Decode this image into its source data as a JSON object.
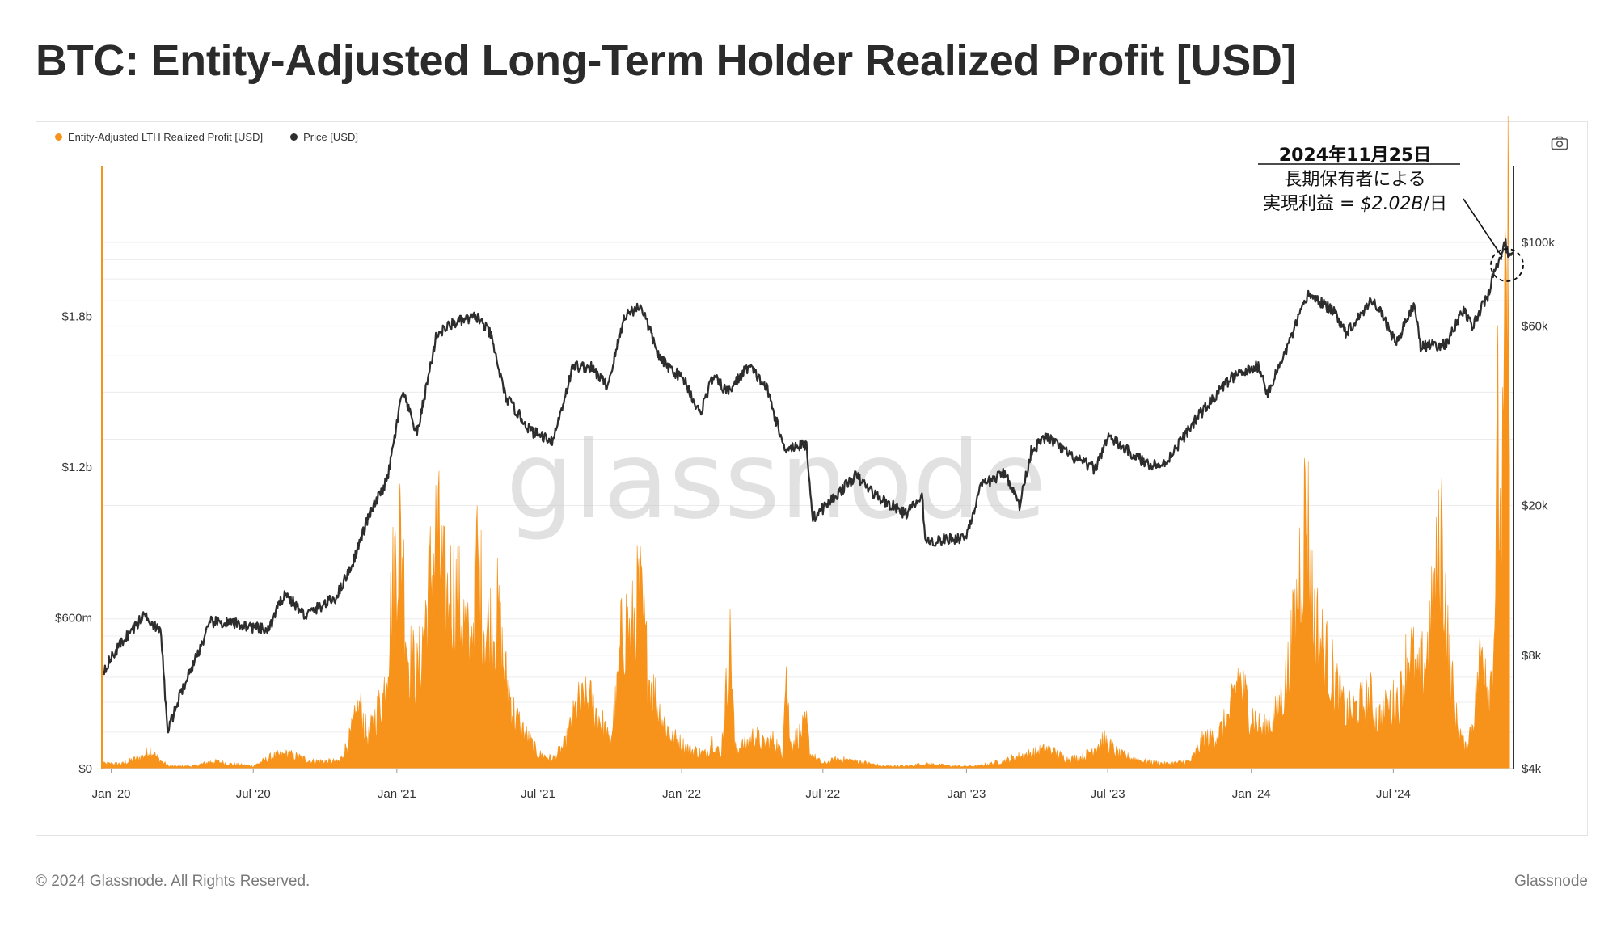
{
  "page": {
    "title": "BTC: Entity-Adjusted Long-Term Holder Realized Profit [USD]",
    "footer_left": "© 2024 Glassnode. All Rights Reserved.",
    "footer_right": "Glassnode",
    "watermark": "glassnode"
  },
  "colors": {
    "profit": "#f7931a",
    "price": "#2d2d2d",
    "grid": "#ececec",
    "axis_text": "#333333"
  },
  "icons": {
    "camera": "camera-icon"
  },
  "chart_data": {
    "type": "area",
    "legend": [
      "Entity-Adjusted LTH Realized Profit [USD]",
      "Price [USD]"
    ],
    "x_ticks": [
      "Jan '20",
      "Jul '20",
      "Jan '21",
      "Jul '21",
      "Jan '22",
      "Jul '22",
      "Jan '23",
      "Jul '23",
      "Jan '24",
      "Jul '24"
    ],
    "x_range": [
      "2019-12-20",
      "2024-12-02"
    ],
    "y_left": {
      "ticks": [
        "$0",
        "$600m",
        "$1.2b",
        "$1.8b"
      ],
      "tick_values": [
        0,
        0.6,
        1.2,
        1.8
      ],
      "unit": "billion USD",
      "range": [
        0,
        2.4
      ]
    },
    "y_right": {
      "scale": "log",
      "ticks": [
        "$4k",
        "$8k",
        "$20k",
        "$60k",
        "$100k"
      ],
      "tick_values": [
        4000,
        8000,
        20000,
        60000,
        100000
      ],
      "range": [
        4000,
        160000
      ]
    },
    "series": [
      {
        "name": "Entity-Adjusted LTH Realized Profit [USD]",
        "unit": "billion USD",
        "points": [
          [
            "2019-12-20",
            0.02
          ],
          [
            "2020-01-15",
            0.02
          ],
          [
            "2020-02-10",
            0.05
          ],
          [
            "2020-02-20",
            0.08
          ],
          [
            "2020-03-01",
            0.04
          ],
          [
            "2020-03-15",
            0.01
          ],
          [
            "2020-04-15",
            0.01
          ],
          [
            "2020-05-10",
            0.03
          ],
          [
            "2020-06-01",
            0.02
          ],
          [
            "2020-07-01",
            0.01
          ],
          [
            "2020-07-25",
            0.05
          ],
          [
            "2020-08-15",
            0.06
          ],
          [
            "2020-09-15",
            0.03
          ],
          [
            "2020-10-20",
            0.03
          ],
          [
            "2020-11-01",
            0.12
          ],
          [
            "2020-11-15",
            0.26
          ],
          [
            "2020-11-25",
            0.12
          ],
          [
            "2020-12-05",
            0.22
          ],
          [
            "2020-12-15",
            0.3
          ],
          [
            "2020-12-27",
            0.75
          ],
          [
            "2021-01-02",
            0.98
          ],
          [
            "2021-01-08",
            0.9
          ],
          [
            "2021-01-15",
            0.48
          ],
          [
            "2021-01-28",
            0.38
          ],
          [
            "2021-02-10",
            0.7
          ],
          [
            "2021-02-21",
            0.97
          ],
          [
            "2021-03-05",
            0.68
          ],
          [
            "2021-03-15",
            0.76
          ],
          [
            "2021-03-28",
            0.6
          ],
          [
            "2021-04-05",
            0.46
          ],
          [
            "2021-04-14",
            0.87
          ],
          [
            "2021-04-25",
            0.56
          ],
          [
            "2021-05-10",
            0.63
          ],
          [
            "2021-05-20",
            0.38
          ],
          [
            "2021-06-01",
            0.22
          ],
          [
            "2021-06-15",
            0.14
          ],
          [
            "2021-07-01",
            0.06
          ],
          [
            "2021-07-20",
            0.04
          ],
          [
            "2021-08-05",
            0.1
          ],
          [
            "2021-08-20",
            0.26
          ],
          [
            "2021-09-05",
            0.28
          ],
          [
            "2021-09-20",
            0.2
          ],
          [
            "2021-10-01",
            0.1
          ],
          [
            "2021-10-10",
            0.3
          ],
          [
            "2021-10-18",
            0.62
          ],
          [
            "2021-10-28",
            0.54
          ],
          [
            "2021-11-08",
            0.72
          ],
          [
            "2021-11-20",
            0.38
          ],
          [
            "2021-12-05",
            0.22
          ],
          [
            "2021-12-20",
            0.13
          ],
          [
            "2022-01-10",
            0.08
          ],
          [
            "2022-02-01",
            0.06
          ],
          [
            "2022-02-10",
            0.12
          ],
          [
            "2022-02-20",
            0.05
          ],
          [
            "2022-03-05",
            0.54
          ],
          [
            "2022-03-10",
            0.08
          ],
          [
            "2022-03-25",
            0.1
          ],
          [
            "2022-04-05",
            0.14
          ],
          [
            "2022-04-15",
            0.1
          ],
          [
            "2022-04-30",
            0.12
          ],
          [
            "2022-05-10",
            0.05
          ],
          [
            "2022-05-14",
            0.48
          ],
          [
            "2022-05-20",
            0.1
          ],
          [
            "2022-06-01",
            0.14
          ],
          [
            "2022-06-10",
            0.18
          ],
          [
            "2022-06-15",
            0.06
          ],
          [
            "2022-07-01",
            0.02
          ],
          [
            "2022-07-20",
            0.04
          ],
          [
            "2022-08-15",
            0.03
          ],
          [
            "2022-09-15",
            0.01
          ],
          [
            "2022-10-15",
            0.01
          ],
          [
            "2022-11-10",
            0.02
          ],
          [
            "2022-12-15",
            0.01
          ],
          [
            "2023-01-15",
            0.01
          ],
          [
            "2023-02-15",
            0.03
          ],
          [
            "2023-03-20",
            0.06
          ],
          [
            "2023-04-15",
            0.08
          ],
          [
            "2023-05-10",
            0.04
          ],
          [
            "2023-06-01",
            0.05
          ],
          [
            "2023-06-25",
            0.12
          ],
          [
            "2023-07-15",
            0.06
          ],
          [
            "2023-08-15",
            0.03
          ],
          [
            "2023-09-15",
            0.02
          ],
          [
            "2023-10-15",
            0.03
          ],
          [
            "2023-11-01",
            0.12
          ],
          [
            "2023-11-20",
            0.14
          ],
          [
            "2023-12-05",
            0.22
          ],
          [
            "2023-12-15",
            0.38
          ],
          [
            "2023-12-30",
            0.24
          ],
          [
            "2024-01-15",
            0.15
          ],
          [
            "2024-02-01",
            0.22
          ],
          [
            "2024-02-15",
            0.36
          ],
          [
            "2024-02-27",
            0.62
          ],
          [
            "2024-03-05",
            0.92
          ],
          [
            "2024-03-12",
            1.08
          ],
          [
            "2024-03-20",
            0.64
          ],
          [
            "2024-04-01",
            0.5
          ],
          [
            "2024-04-15",
            0.38
          ],
          [
            "2024-05-01",
            0.22
          ],
          [
            "2024-05-20",
            0.26
          ],
          [
            "2024-06-01",
            0.3
          ],
          [
            "2024-06-10",
            0.2
          ],
          [
            "2024-06-25",
            0.25
          ],
          [
            "2024-07-10",
            0.3
          ],
          [
            "2024-07-22",
            0.52
          ],
          [
            "2024-08-01",
            0.35
          ],
          [
            "2024-08-15",
            0.5
          ],
          [
            "2024-08-28",
            0.85
          ],
          [
            "2024-09-01",
            0.98
          ],
          [
            "2024-09-10",
            0.46
          ],
          [
            "2024-09-20",
            0.2
          ],
          [
            "2024-10-01",
            0.08
          ],
          [
            "2024-10-10",
            0.18
          ],
          [
            "2024-10-20",
            0.44
          ],
          [
            "2024-10-25",
            0.52
          ],
          [
            "2024-11-01",
            0.3
          ],
          [
            "2024-11-07",
            0.55
          ],
          [
            "2024-11-12",
            1.35
          ],
          [
            "2024-11-16",
            0.85
          ],
          [
            "2024-11-22",
            1.8
          ],
          [
            "2024-11-25",
            2.02
          ],
          [
            "2024-11-28",
            1.25
          ],
          [
            "2024-12-01",
            0.9
          ]
        ]
      },
      {
        "name": "Price [USD]",
        "unit": "USD",
        "points": [
          [
            "2019-12-20",
            7200
          ],
          [
            "2020-01-15",
            8700
          ],
          [
            "2020-02-14",
            10300
          ],
          [
            "2020-03-05",
            9100
          ],
          [
            "2020-03-13",
            5000
          ],
          [
            "2020-04-01",
            6500
          ],
          [
            "2020-05-08",
            9800
          ],
          [
            "2020-06-10",
            9700
          ],
          [
            "2020-07-20",
            9300
          ],
          [
            "2020-08-10",
            11700
          ],
          [
            "2020-09-05",
            10200
          ],
          [
            "2020-10-15",
            11400
          ],
          [
            "2020-11-05",
            14000
          ],
          [
            "2020-11-25",
            18500
          ],
          [
            "2020-12-20",
            23500
          ],
          [
            "2021-01-08",
            40000
          ],
          [
            "2021-01-27",
            31000
          ],
          [
            "2021-02-21",
            57000
          ],
          [
            "2021-03-14",
            61000
          ],
          [
            "2021-04-14",
            63500
          ],
          [
            "2021-05-01",
            57000
          ],
          [
            "2021-05-20",
            39000
          ],
          [
            "2021-06-22",
            31500
          ],
          [
            "2021-07-20",
            29800
          ],
          [
            "2021-08-15",
            47000
          ],
          [
            "2021-09-07",
            46500
          ],
          [
            "2021-09-28",
            41500
          ],
          [
            "2021-10-20",
            64000
          ],
          [
            "2021-11-10",
            68000
          ],
          [
            "2021-12-04",
            49000
          ],
          [
            "2022-01-05",
            43000
          ],
          [
            "2022-01-24",
            35000
          ],
          [
            "2022-02-10",
            44000
          ],
          [
            "2022-03-01",
            40000
          ],
          [
            "2022-03-28",
            47000
          ],
          [
            "2022-04-20",
            41000
          ],
          [
            "2022-05-12",
            28500
          ],
          [
            "2022-06-10",
            29000
          ],
          [
            "2022-06-18",
            18500
          ],
          [
            "2022-07-05",
            20000
          ],
          [
            "2022-08-12",
            24000
          ],
          [
            "2022-09-10",
            21000
          ],
          [
            "2022-10-15",
            19000
          ],
          [
            "2022-11-05",
            21000
          ],
          [
            "2022-11-10",
            16000
          ],
          [
            "2022-12-31",
            16500
          ],
          [
            "2023-01-20",
            22500
          ],
          [
            "2023-02-20",
            24500
          ],
          [
            "2023-03-10",
            20000
          ],
          [
            "2023-03-25",
            28000
          ],
          [
            "2023-04-14",
            30500
          ],
          [
            "2023-05-15",
            27000
          ],
          [
            "2023-06-15",
            25000
          ],
          [
            "2023-07-01",
            30500
          ],
          [
            "2023-08-17",
            26000
          ],
          [
            "2023-09-10",
            25500
          ],
          [
            "2023-10-25",
            34500
          ],
          [
            "2023-12-05",
            43500
          ],
          [
            "2024-01-11",
            47000
          ],
          [
            "2024-01-22",
            39500
          ],
          [
            "2024-02-15",
            52000
          ],
          [
            "2024-03-14",
            73000
          ],
          [
            "2024-04-01",
            69000
          ],
          [
            "2024-04-20",
            64000
          ],
          [
            "2024-05-01",
            57500
          ],
          [
            "2024-06-05",
            71000
          ],
          [
            "2024-07-05",
            54000
          ],
          [
            "2024-07-28",
            69000
          ],
          [
            "2024-08-05",
            53000
          ],
          [
            "2024-09-06",
            53500
          ],
          [
            "2024-09-28",
            66000
          ],
          [
            "2024-10-10",
            60000
          ],
          [
            "2024-10-30",
            72000
          ],
          [
            "2024-11-11",
            88000
          ],
          [
            "2024-11-22",
            99000
          ],
          [
            "2024-11-25",
            93000
          ],
          [
            "2024-12-01",
            97000
          ]
        ]
      }
    ],
    "annotation": {
      "date": "2024年11月25日",
      "line1": "長期保有者による",
      "line2_prefix": "実現利益 = ",
      "line2_value": "$2.02B",
      "line2_suffix": "/日"
    }
  }
}
